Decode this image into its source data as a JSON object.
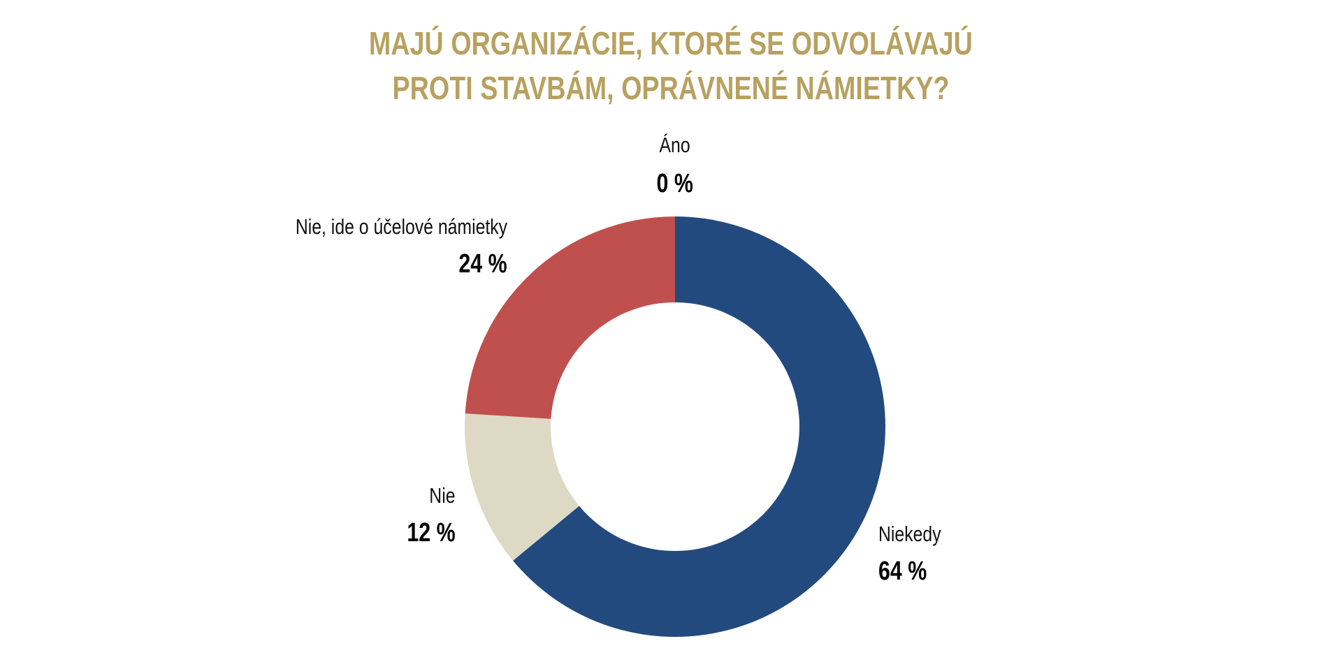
{
  "chart_data": {
    "type": "pie",
    "variant": "donut",
    "title_lines": [
      "MAJÚ ORGANIZÁCIE, KTORÉ SE ODVOLÁVAJÚ",
      "PROTI STAVBÁM, OPRÁVNENÉ NÁMIETKY?"
    ],
    "slices": [
      {
        "label": "Niekedy",
        "value": 64,
        "value_label": "64 %",
        "color": "#234a7e"
      },
      {
        "label": "Nie",
        "value": 12,
        "value_label": "12 %",
        "color": "#ddd9c5"
      },
      {
        "label": "Nie, ide o účelové námietky",
        "value": 24,
        "value_label": "24 %",
        "color": "#c0504d"
      },
      {
        "label": "Áno",
        "value": 0,
        "value_label": "0 %",
        "color": "#9bbb59"
      }
    ],
    "start_angle": "top",
    "direction": "clockwise",
    "unit": "%"
  }
}
